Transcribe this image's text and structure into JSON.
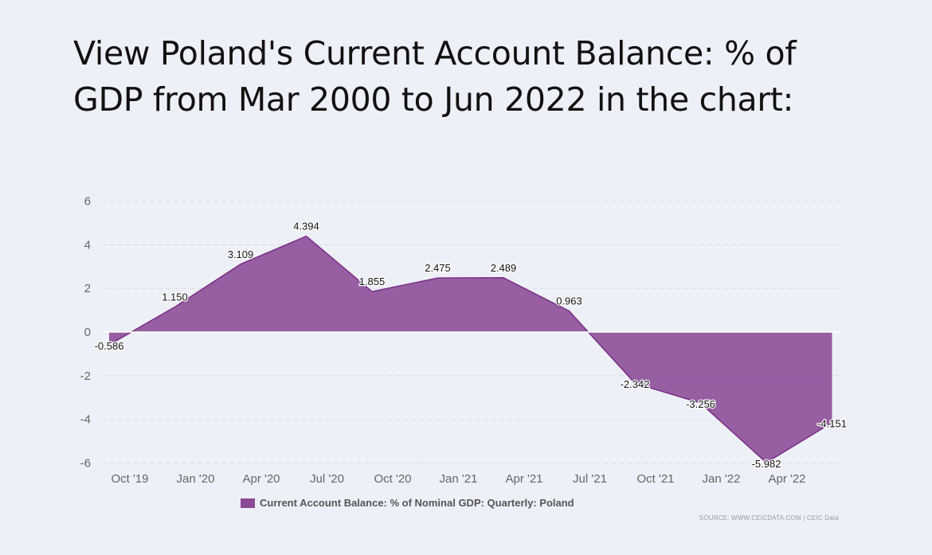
{
  "heading": "View Poland's Current Account Balance: % of GDP from Mar 2000 to Jun 2022 in the chart:",
  "source": "SOURCE: WWW.CEICDATA.COM | CEIC Data",
  "colors": {
    "area": "#8b4a96",
    "line": "#7a2e87",
    "grid": "#d9dce6",
    "zero": "#ffffff"
  },
  "chart_data": {
    "type": "area",
    "title": "",
    "xlabel": "",
    "ylabel": "",
    "ylim": [
      -6,
      6
    ],
    "yticks": [
      6,
      4,
      2,
      0,
      -2,
      -4,
      -6
    ],
    "grid": true,
    "legend_position": "bottom",
    "x": [
      "Sep 2019",
      "Dec 2019",
      "Mar 2020",
      "Jun 2020",
      "Sep 2020",
      "Dec 2020",
      "Mar 2021",
      "Jun 2021",
      "Sep 2021",
      "Dec 2021",
      "Mar 2022",
      "Jun 2022"
    ],
    "xtick_labels": [
      "Oct '19",
      "Jan '20",
      "Apr '20",
      "Jul '20",
      "Oct '20",
      "Jan '21",
      "Apr '21",
      "Jul '21",
      "Oct '21",
      "Jan '22",
      "Apr '22"
    ],
    "series": [
      {
        "name": "Current Account Balance: % of Nominal GDP: Quarterly: Poland",
        "values": [
          -0.586,
          1.15,
          3.109,
          4.394,
          1.855,
          2.475,
          2.489,
          0.963,
          -2.342,
          -3.256,
          -5.982,
          -4.151
        ],
        "labels": [
          "-0.586",
          "1.150",
          "3.109",
          "4.394",
          "1.855",
          "2.475",
          "2.489",
          "0.963",
          "-2.342",
          "-3.256",
          "-5.982",
          "-4.151"
        ]
      }
    ]
  }
}
